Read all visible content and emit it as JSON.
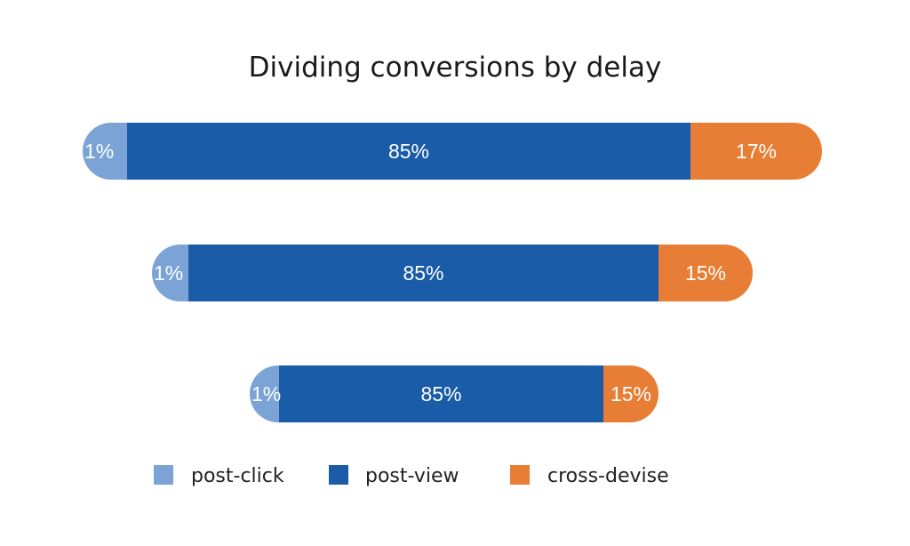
{
  "chart_data": {
    "type": "bar",
    "orientation": "horizontal",
    "stacked": true,
    "title": "Dividing conversions by delay",
    "xlabel": "",
    "ylabel": "",
    "grid": false,
    "legend_position": "bottom",
    "categories": [
      "",
      "",
      ""
    ],
    "series": [
      {
        "name": "post-click",
        "color": "#7ba3d6",
        "values": [
          1,
          1,
          1
        ],
        "labels": [
          "1%",
          "1%",
          "1%"
        ]
      },
      {
        "name": "post-view",
        "color": "#1a5ca8",
        "values": [
          85,
          85,
          85
        ],
        "labels": [
          "85%",
          "85%",
          "85%"
        ]
      },
      {
        "name": "cross-devise",
        "color": "#e87d35",
        "values": [
          17,
          15,
          15
        ],
        "labels": [
          "17%",
          "15%",
          "15%"
        ]
      }
    ]
  }
}
